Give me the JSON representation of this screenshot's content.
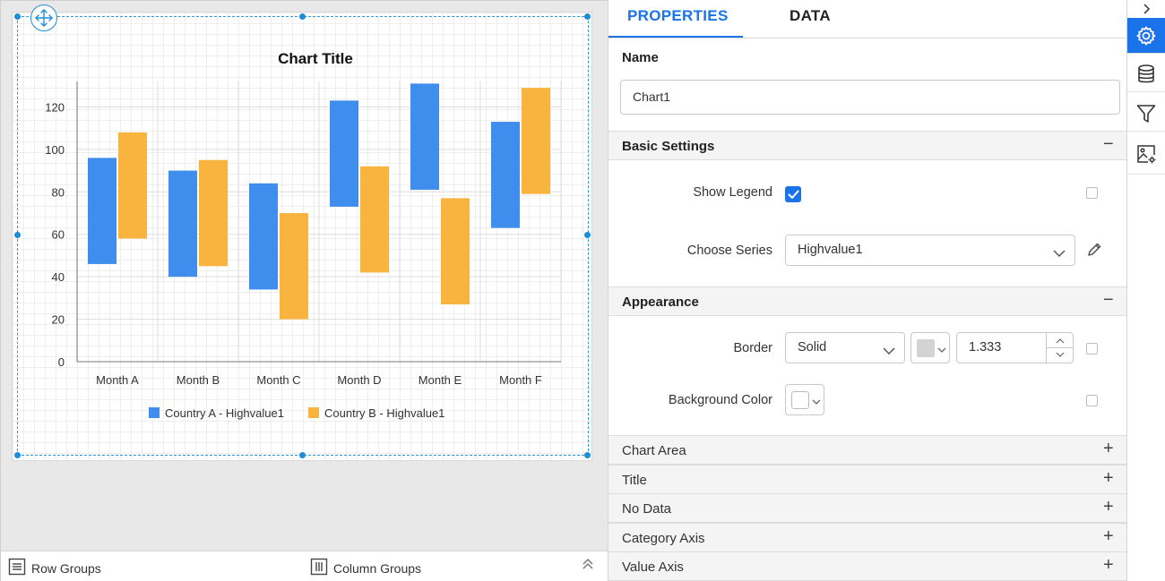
{
  "design": {
    "row_groups_label": "Row Groups",
    "column_groups_label": "Column Groups"
  },
  "chart_data": {
    "type": "floating-bar",
    "title": "Chart Title",
    "categories": [
      "Month A",
      "Month B",
      "Month C",
      "Month D",
      "Month E",
      "Month F"
    ],
    "series": [
      {
        "name": "Country A - Highvalue1",
        "color": "#3f8ded",
        "low": [
          46,
          40,
          34,
          73,
          81,
          63
        ],
        "high": [
          96,
          90,
          84,
          123,
          131,
          113
        ]
      },
      {
        "name": "Country B - Highvalue1",
        "color": "#f9b33f",
        "low": [
          58,
          45,
          20,
          42,
          27,
          79
        ],
        "high": [
          108,
          95,
          70,
          92,
          77,
          129
        ]
      }
    ],
    "y_ticks": [
      "0",
      "20",
      "40",
      "60",
      "80",
      "100",
      "120"
    ],
    "ylim": [
      0,
      132
    ],
    "grid": true,
    "legend_position": "bottom"
  },
  "panel": {
    "tabs": {
      "properties": "PROPERTIES",
      "data": "DATA"
    },
    "name_label": "Name",
    "name_value": "Chart1",
    "basic_settings": {
      "header": "Basic Settings",
      "toggle": "−",
      "show_legend_label": "Show Legend",
      "choose_series_label": "Choose Series",
      "choose_series_value": "Highvalue1"
    },
    "appearance": {
      "header": "Appearance",
      "toggle": "−",
      "border_label": "Border",
      "border_style": "Solid",
      "border_color": "#d3d3d3",
      "border_width": "1.333",
      "background_color_label": "Background Color",
      "background_color": "#ffffff"
    },
    "collapsed_sections": [
      {
        "label": "Chart Area",
        "toggle": "+"
      },
      {
        "label": "Title",
        "toggle": "+"
      },
      {
        "label": "No Data",
        "toggle": "+"
      },
      {
        "label": "Category Axis",
        "toggle": "+"
      },
      {
        "label": "Value Axis",
        "toggle": "+"
      }
    ]
  },
  "accent_color": "#1a73e8"
}
